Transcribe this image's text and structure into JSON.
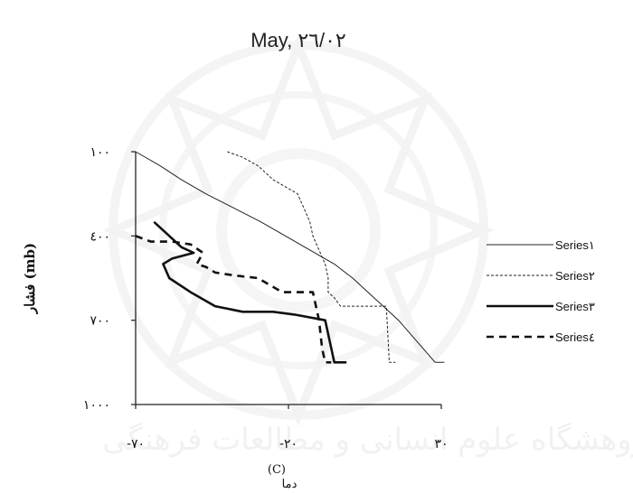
{
  "chart_data": {
    "type": "line",
    "title": "May, ٢٦/٠٢",
    "xlabel_prefix": "دما",
    "xlabel_unit": "(C)",
    "ylabel": "فشار (mb)",
    "xlim": [
      -70,
      30
    ],
    "ylim": [
      100,
      1000
    ],
    "y_inverted": true,
    "x_ticks": [
      -70,
      -20,
      30
    ],
    "x_tick_labels": [
      "-٧٠",
      "-٢٠",
      "٣٠"
    ],
    "y_ticks": [
      100,
      400,
      700,
      1000
    ],
    "y_tick_labels": [
      "١٠٠",
      "٤٠٠",
      "٧٠٠",
      "١٠٠٠"
    ],
    "grid": false,
    "legend_position": "right",
    "series": [
      {
        "name": "Series١",
        "style": "solid-thin",
        "color": "#222222",
        "points": [
          [
            -70,
            100
          ],
          [
            -62,
            150
          ],
          [
            -55,
            200
          ],
          [
            -47,
            250
          ],
          [
            -38,
            300
          ],
          [
            -29,
            350
          ],
          [
            -21,
            400
          ],
          [
            -13,
            450
          ],
          [
            -5,
            500
          ],
          [
            1,
            550
          ],
          [
            6,
            600
          ],
          [
            11,
            650
          ],
          [
            16,
            700
          ],
          [
            20,
            750
          ],
          [
            24,
            800
          ],
          [
            28,
            850
          ],
          [
            31,
            850
          ]
        ]
      },
      {
        "name": "Series٢",
        "style": "dashed-thin",
        "color": "#222222",
        "points": [
          [
            -40,
            100
          ],
          [
            -35,
            120
          ],
          [
            -30,
            150
          ],
          [
            -25,
            200
          ],
          [
            -17,
            250
          ],
          [
            -13,
            350
          ],
          [
            -12,
            400
          ],
          [
            -10,
            450
          ],
          [
            -8,
            500
          ],
          [
            -7,
            550
          ],
          [
            -7,
            600
          ],
          [
            -5,
            620
          ],
          [
            -3,
            650
          ],
          [
            8,
            650
          ],
          [
            12,
            650
          ],
          [
            13,
            850
          ],
          [
            15,
            850
          ]
        ]
      },
      {
        "name": "Series٣",
        "style": "solid-thick",
        "color": "#111111",
        "points": [
          [
            -64,
            350
          ],
          [
            -59,
            400
          ],
          [
            -55,
            440
          ],
          [
            -51,
            460
          ],
          [
            -58,
            480
          ],
          [
            -61,
            500
          ],
          [
            -59,
            550
          ],
          [
            -52,
            600
          ],
          [
            -44,
            650
          ],
          [
            -35,
            670
          ],
          [
            -25,
            670
          ],
          [
            -18,
            680
          ],
          [
            -8,
            700
          ],
          [
            -5,
            850
          ],
          [
            -1,
            850
          ]
        ]
      },
      {
        "name": "Series٤",
        "style": "dashed-thick",
        "color": "#111111",
        "points": [
          [
            -70,
            400
          ],
          [
            -65,
            420
          ],
          [
            -58,
            420
          ],
          [
            -52,
            430
          ],
          [
            -48,
            460
          ],
          [
            -50,
            500
          ],
          [
            -47,
            510
          ],
          [
            -44,
            530
          ],
          [
            -38,
            540
          ],
          [
            -30,
            550
          ],
          [
            -22,
            600
          ],
          [
            -17,
            600
          ],
          [
            -12,
            600
          ],
          [
            -10,
            700
          ],
          [
            -9,
            800
          ],
          [
            -8,
            850
          ],
          [
            -6,
            850
          ]
        ]
      }
    ]
  },
  "watermark": {
    "text": "پژوهشگاه علوم انسانی و مطالعات فرهنگی"
  }
}
